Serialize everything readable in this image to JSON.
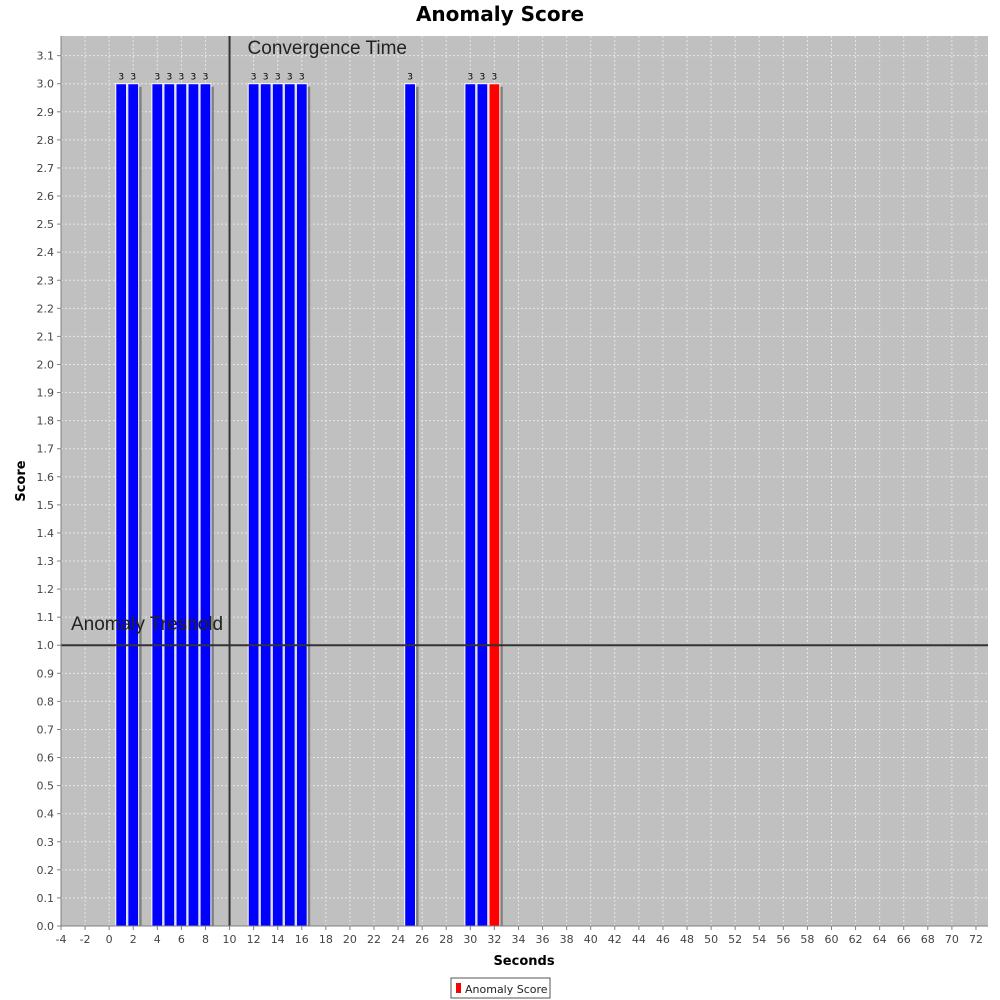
{
  "chart_data": {
    "type": "bar",
    "title": "Anomaly Score",
    "xlabel": "Seconds",
    "ylabel": "Score",
    "xlim": [
      -4,
      73
    ],
    "ylim": [
      0,
      3.17
    ],
    "xticks": [
      -4,
      -2,
      0,
      2,
      4,
      6,
      8,
      10,
      12,
      14,
      16,
      18,
      20,
      22,
      24,
      26,
      28,
      30,
      32,
      34,
      36,
      38,
      40,
      42,
      44,
      46,
      48,
      50,
      52,
      54,
      56,
      58,
      60,
      62,
      64,
      66,
      68,
      70,
      72
    ],
    "yticks": [
      "0.0",
      "0.1",
      "0.2",
      "0.3",
      "0.4",
      "0.5",
      "0.6",
      "0.7",
      "0.8",
      "0.9",
      "1.0",
      "1.1",
      "1.2",
      "1.3",
      "1.4",
      "1.5",
      "1.6",
      "1.7",
      "1.8",
      "1.9",
      "2.0",
      "2.1",
      "2.2",
      "2.3",
      "2.4",
      "2.5",
      "2.6",
      "2.7",
      "2.8",
      "2.9",
      "3.0",
      "3.1"
    ],
    "grid": true,
    "bar_width": 0.9,
    "series": [
      {
        "name": "Anomaly Score",
        "points": [
          {
            "x": 1,
            "y": 3,
            "label": "3",
            "color": "#0000ff"
          },
          {
            "x": 2,
            "y": 3,
            "label": "3",
            "color": "#0000ff"
          },
          {
            "x": 4,
            "y": 3,
            "label": "3",
            "color": "#0000ff"
          },
          {
            "x": 5,
            "y": 3,
            "label": "3",
            "color": "#0000ff"
          },
          {
            "x": 6,
            "y": 3,
            "label": "3",
            "color": "#0000ff"
          },
          {
            "x": 7,
            "y": 3,
            "label": "3",
            "color": "#0000ff"
          },
          {
            "x": 8,
            "y": 3,
            "label": "3",
            "color": "#0000ff"
          },
          {
            "x": 12,
            "y": 3,
            "label": "3",
            "color": "#0000ff"
          },
          {
            "x": 13,
            "y": 3,
            "label": "3",
            "color": "#0000ff"
          },
          {
            "x": 14,
            "y": 3,
            "label": "3",
            "color": "#0000ff"
          },
          {
            "x": 15,
            "y": 3,
            "label": "3",
            "color": "#0000ff"
          },
          {
            "x": 16,
            "y": 3,
            "label": "3",
            "color": "#0000ff"
          },
          {
            "x": 25,
            "y": 3,
            "label": "3",
            "color": "#0000ff"
          },
          {
            "x": 30,
            "y": 3,
            "label": "3",
            "color": "#0000ff"
          },
          {
            "x": 31,
            "y": 3,
            "label": "3",
            "color": "#0000ff"
          },
          {
            "x": 32,
            "y": 3,
            "label": "3",
            "color": "#ff0000"
          }
        ]
      }
    ],
    "markers": {
      "vertical": {
        "x": 10,
        "label": "Convergence Time"
      },
      "horizontal": {
        "y": 1.0,
        "label": "Anomaly Tresnold"
      }
    },
    "legend": {
      "position": "bottom",
      "entries": [
        {
          "label": "Anomaly Score",
          "color": "#ff0000"
        }
      ]
    },
    "colors": {
      "plot_background": "#c0c0c0",
      "grid": "#e6e6e6",
      "bar_primary": "#0000ff",
      "bar_highlight": "#ff0000",
      "marker_line": "#333333"
    }
  }
}
